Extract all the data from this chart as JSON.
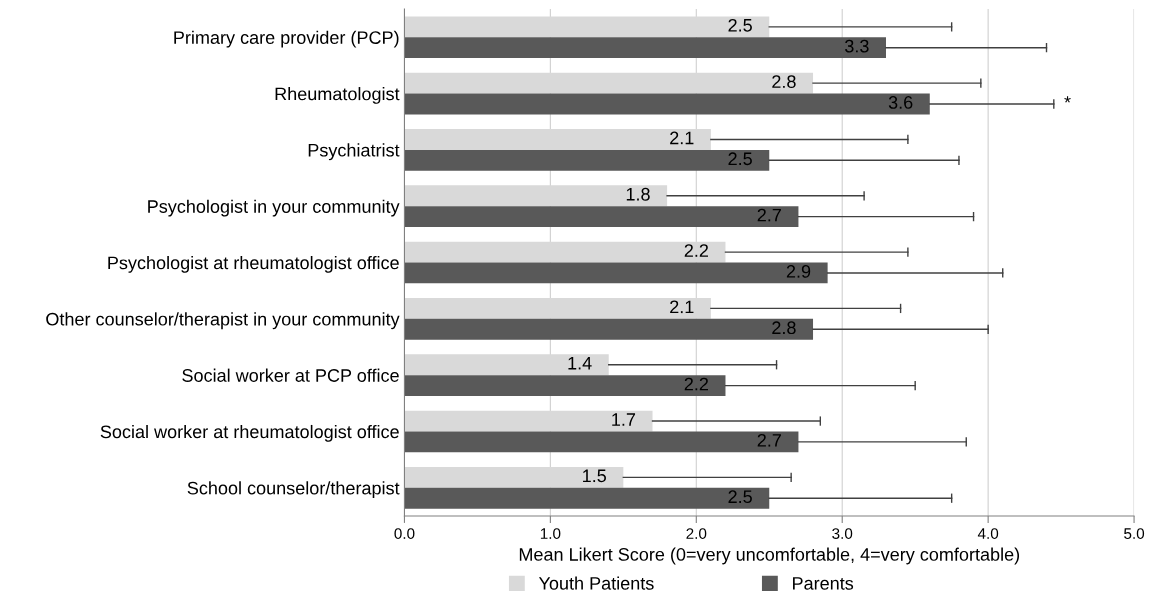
{
  "chart_data": {
    "type": "bar",
    "orientation": "horizontal",
    "xlabel": "Mean Likert Score (0=very uncomfortable, 4=very comfortable)",
    "categories": [
      "Primary care provider (PCP)",
      "Rheumatologist",
      "Psychiatrist",
      "Psychologist in your community",
      "Psychologist at rheumatologist office",
      "Other counselor/therapist in your community",
      "Social worker at PCP office",
      "Social worker at rheumatologist office",
      "School counselor/therapist"
    ],
    "series": [
      {
        "name": "Youth Patients",
        "color": "#d9d9d9",
        "values": [
          2.5,
          2.8,
          2.1,
          1.8,
          2.2,
          2.1,
          1.4,
          1.7,
          1.5
        ],
        "errors": [
          [
            2.5,
            3.75
          ],
          [
            2.8,
            3.95
          ],
          [
            2.1,
            3.45
          ],
          [
            1.8,
            3.15
          ],
          [
            2.2,
            3.45
          ],
          [
            2.1,
            3.4
          ],
          [
            1.4,
            2.55
          ],
          [
            1.7,
            2.85
          ],
          [
            1.5,
            2.65
          ]
        ]
      },
      {
        "name": "Parents",
        "color": "#595959",
        "values": [
          3.3,
          3.6,
          2.5,
          2.7,
          2.9,
          2.8,
          2.2,
          2.7,
          2.5
        ],
        "errors": [
          [
            3.3,
            4.4
          ],
          [
            3.6,
            4.45
          ],
          [
            2.5,
            3.8
          ],
          [
            2.7,
            3.9
          ],
          [
            2.9,
            4.1
          ],
          [
            2.8,
            4.0
          ],
          [
            2.2,
            3.5
          ],
          [
            2.7,
            3.85
          ],
          [
            2.5,
            3.75
          ]
        ]
      }
    ],
    "xlim": [
      0,
      5
    ],
    "xticks": [
      {
        "value": 0,
        "label": "0.0"
      },
      {
        "value": 1,
        "label": "1.0"
      },
      {
        "value": 2,
        "label": "2.0"
      },
      {
        "value": 3,
        "label": "3.0"
      },
      {
        "value": 4,
        "label": "4.0"
      },
      {
        "value": 5,
        "label": "5.0"
      }
    ],
    "grid": "x",
    "legend": "bottom",
    "data_labels": true,
    "annotations": [
      "*"
    ]
  }
}
